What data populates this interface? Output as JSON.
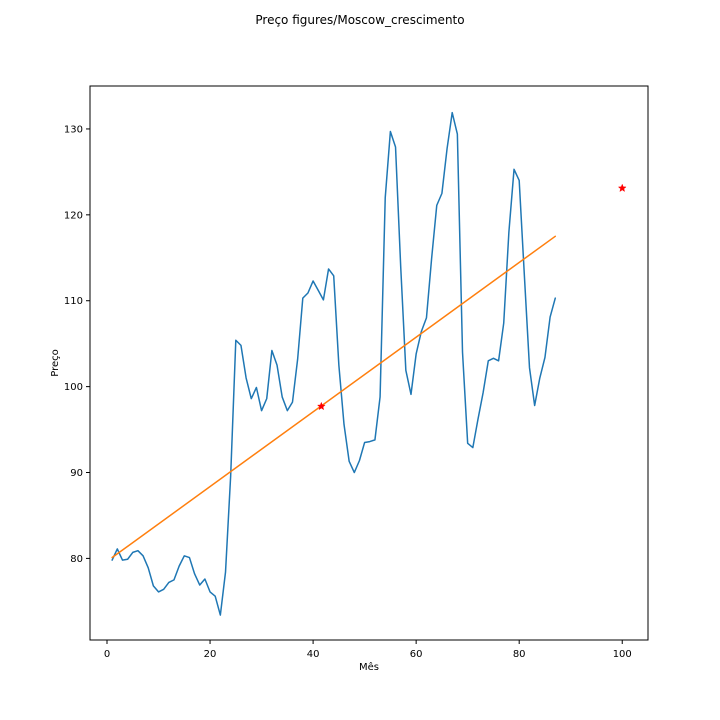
{
  "chart_data": {
    "type": "line",
    "title": "Preço figures/Moscow_crescimento",
    "xlabel": "Mês",
    "ylabel": "Preço",
    "xlim": [
      -3.3,
      105
    ],
    "ylim": [
      70.5,
      135
    ],
    "xticks": [
      0,
      20,
      40,
      60,
      80,
      100
    ],
    "yticks": [
      80,
      90,
      100,
      110,
      120,
      130
    ],
    "grid": false,
    "series": [
      {
        "color": "#1f77b4",
        "style": "line",
        "x": [
          1,
          2,
          3,
          4,
          5,
          6,
          7,
          8,
          9,
          10,
          11,
          12,
          13,
          14,
          15,
          16,
          17,
          18,
          19,
          20,
          21,
          22,
          23,
          24,
          25,
          26,
          27,
          28,
          29,
          30,
          31,
          32,
          33,
          34,
          35,
          36,
          37,
          38,
          39,
          40,
          41,
          42,
          43,
          44,
          45,
          46,
          47,
          48,
          49,
          50,
          51,
          52,
          53,
          54,
          55,
          56,
          57,
          58,
          59,
          60,
          61,
          62,
          63,
          64,
          65,
          66,
          67,
          68,
          69,
          70,
          71,
          72,
          73,
          74,
          75,
          76,
          77,
          78,
          79,
          80,
          81,
          82,
          83,
          84,
          85,
          86,
          87
        ],
        "y": [
          79.8,
          81.1,
          79.8,
          79.9,
          80.7,
          80.9,
          80.3,
          78.9,
          76.8,
          76.1,
          76.4,
          77.2,
          77.5,
          79.1,
          80.3,
          80.1,
          78.2,
          76.9,
          77.6,
          76.1,
          75.6,
          73.4,
          78.4,
          89.6,
          105.4,
          104.8,
          101.0,
          98.6,
          99.9,
          97.2,
          98.6,
          104.2,
          102.5,
          98.8,
          97.2,
          98.2,
          103.2,
          110.3,
          110.9,
          112.3,
          111.2,
          110.1,
          113.7,
          112.9,
          102.5,
          95.6,
          91.3,
          90.0,
          91.4,
          93.5,
          93.6,
          93.8,
          98.8,
          122.0,
          129.7,
          127.9,
          114.0,
          101.9,
          99.1,
          103.8,
          106.4,
          108.0,
          114.9,
          121.1,
          122.5,
          127.7,
          131.9,
          129.4,
          104.0,
          93.4,
          92.9,
          96.2,
          99.3,
          103.0,
          103.3,
          103.0,
          107.4,
          118.0,
          125.3,
          124.0,
          113.0,
          102.2,
          97.8,
          101.0,
          103.4,
          108.1,
          110.3
        ]
      },
      {
        "color": "#ff7f0e",
        "style": "line",
        "x": [
          1,
          87
        ],
        "y": [
          80.1,
          117.5
        ]
      },
      {
        "color": "#ff0000",
        "style": "marker",
        "marker": "star",
        "x": [
          41.6,
          100
        ],
        "y": [
          97.7,
          123.1
        ]
      }
    ]
  }
}
